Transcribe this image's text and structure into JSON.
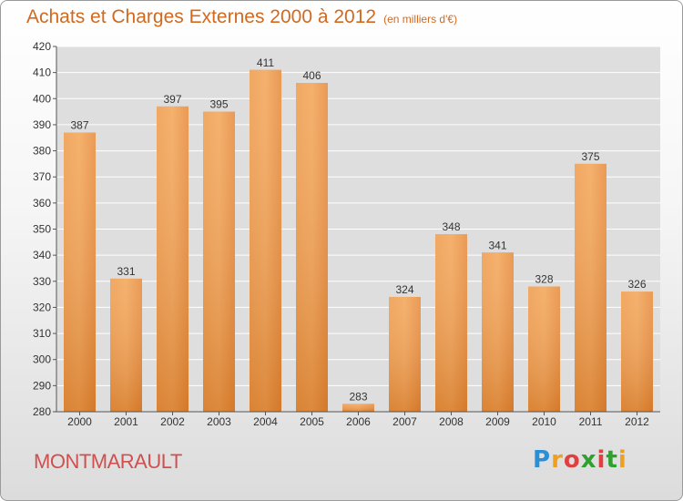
{
  "chart_data": {
    "type": "bar",
    "title": "Achats et Charges Externes 2000 à 2012",
    "subtitle": "(en milliers d'€)",
    "categories": [
      "2000",
      "2001",
      "2002",
      "2003",
      "2004",
      "2005",
      "2006",
      "2007",
      "2008",
      "2009",
      "2010",
      "2011",
      "2012"
    ],
    "values": [
      387,
      331,
      397,
      395,
      411,
      406,
      283,
      324,
      348,
      341,
      328,
      375,
      326
    ],
    "ylim": [
      280,
      420
    ],
    "yticks": [
      280,
      290,
      300,
      310,
      320,
      330,
      340,
      350,
      360,
      370,
      380,
      390,
      400,
      410,
      420
    ],
    "grid": true,
    "bar_color": "#e8832e",
    "grid_color": "#ffffff"
  },
  "footer": {
    "commune": "MONTMARAULT",
    "logo": {
      "letters": [
        "P",
        "r",
        "o",
        "x",
        "i",
        "t",
        "i"
      ],
      "colors": [
        "#2a8fd6",
        "#f0a020",
        "#e04040",
        "#30a030",
        "#e04040",
        "#30a030",
        "#f0a020"
      ]
    }
  }
}
